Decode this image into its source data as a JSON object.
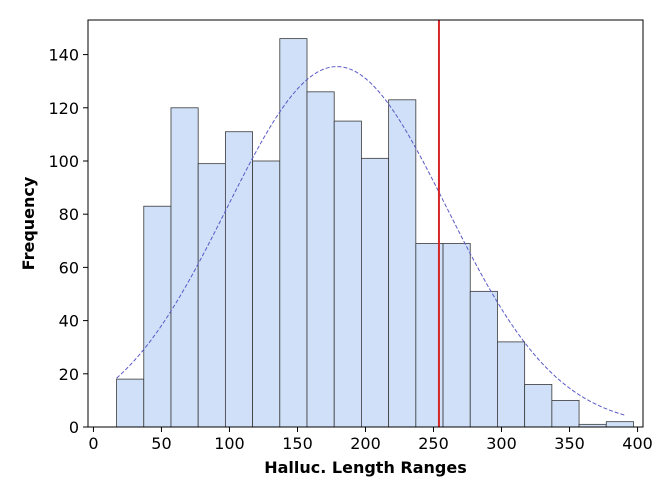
{
  "chart_data": {
    "type": "bar",
    "subtype": "histogram",
    "title": "",
    "xlabel": "Halluc. Length Ranges",
    "ylabel": "Frequency",
    "xlim": [
      -4,
      404
    ],
    "ylim": [
      0,
      153
    ],
    "xticks": [
      0,
      50,
      100,
      150,
      200,
      250,
      300,
      350,
      400
    ],
    "yticks": [
      0,
      20,
      40,
      60,
      80,
      100,
      120,
      140
    ],
    "bins": [
      {
        "start": 17,
        "end": 37,
        "count": 18
      },
      {
        "start": 37,
        "end": 57,
        "count": 83
      },
      {
        "start": 57,
        "end": 77,
        "count": 120
      },
      {
        "start": 77,
        "end": 97,
        "count": 99
      },
      {
        "start": 97,
        "end": 117,
        "count": 111
      },
      {
        "start": 117,
        "end": 137,
        "count": 100
      },
      {
        "start": 137,
        "end": 157,
        "count": 146
      },
      {
        "start": 157,
        "end": 177,
        "count": 126
      },
      {
        "start": 177,
        "end": 197,
        "count": 115
      },
      {
        "start": 197,
        "end": 217,
        "count": 101
      },
      {
        "start": 217,
        "end": 237,
        "count": 123
      },
      {
        "start": 237,
        "end": 257,
        "count": 69
      },
      {
        "start": 257,
        "end": 277,
        "count": 69
      },
      {
        "start": 277,
        "end": 297,
        "count": 51
      },
      {
        "start": 297,
        "end": 317,
        "count": 32
      },
      {
        "start": 317,
        "end": 337,
        "count": 16
      },
      {
        "start": 337,
        "end": 357,
        "count": 10
      },
      {
        "start": 357,
        "end": 377,
        "count": 1
      },
      {
        "start": 377,
        "end": 397,
        "count": 2
      }
    ],
    "normal_fit_curve": {
      "style": "dashed",
      "color": "#5a5ac8",
      "mean": 179,
      "sd": 81,
      "peak": 135.5,
      "x_range": [
        17,
        391
      ]
    },
    "reference_line": {
      "x": 254,
      "color": "#d62728"
    },
    "bar_fill": "#cfe0f8",
    "bar_edge": "#3a3a3a",
    "grid": false,
    "legend": "none"
  }
}
